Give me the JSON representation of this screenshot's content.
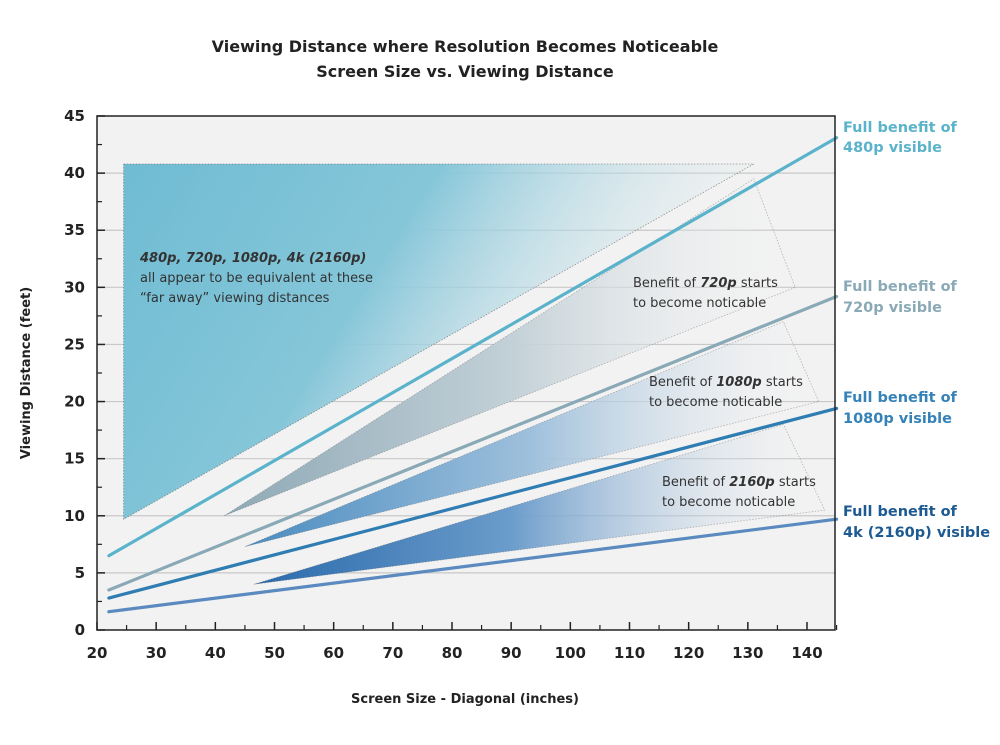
{
  "chart_data": {
    "type": "line",
    "title": "Viewing Distance where Resolution Becomes Noticeable",
    "subtitle": "Screen Size vs. Viewing Distance",
    "xlabel": "Screen Size - Diagonal (inches)",
    "ylabel": "Viewing Distance (feet)",
    "xlim": [
      20,
      145
    ],
    "ylim": [
      0,
      45
    ],
    "xticks": [
      "20",
      "30",
      "40",
      "50",
      "60",
      "70",
      "80",
      "90",
      "100",
      "110",
      "120",
      "130",
      "140"
    ],
    "yticks": [
      "0",
      "5",
      "10",
      "15",
      "20",
      "25",
      "30",
      "35",
      "40",
      "45"
    ],
    "grid": "horizontal",
    "colors": {
      "plot_bg": "#f2f2f2",
      "grid": "#c8c8c8"
    },
    "series": [
      {
        "name": "Full benefit of 480p visible",
        "label_lines": [
          "Full benefit of",
          "480p visible"
        ],
        "color": "#5ab3cb",
        "label_color": "#5ab3cb",
        "x": [
          22,
          145
        ],
        "y": [
          6.5,
          43.1
        ]
      },
      {
        "name": "Full benefit of 720p visible",
        "label_lines": [
          "Full benefit of",
          "720p visible"
        ],
        "color": "#8aa9b6",
        "label_color": "#8aa9b6",
        "x": [
          22,
          145
        ],
        "y": [
          3.5,
          29.2
        ]
      },
      {
        "name": "Full benefit of 1080p visible",
        "label_lines": [
          "Full benefit of",
          "1080p visible"
        ],
        "color": "#2f7db3",
        "label_color": "#3482b8",
        "x": [
          22,
          145
        ],
        "y": [
          2.8,
          19.4
        ]
      },
      {
        "name": "Full benefit of 4k (2160p) visible",
        "label_lines": [
          "Full benefit of",
          "4k (2160p) visible"
        ],
        "color": "#5a8abf",
        "label_color": "#1d5a92",
        "x": [
          22,
          145
        ],
        "y": [
          1.6,
          9.7
        ]
      }
    ],
    "regions": [
      {
        "color": "#6fbcd3",
        "points": [
          [
            24.5,
            40.8
          ],
          [
            24.5,
            9.7
          ],
          [
            131,
            40.8
          ]
        ]
      },
      {
        "color": "#8ea9b6",
        "points": [
          [
            41.5,
            10
          ],
          [
            131,
            39.5
          ],
          [
            138,
            30
          ]
        ]
      },
      {
        "color": "#4a8cc0",
        "points": [
          [
            45,
            7.3
          ],
          [
            136,
            27
          ],
          [
            142,
            20
          ]
        ]
      },
      {
        "color": "#2a6aab",
        "points": [
          [
            46.5,
            4
          ],
          [
            136,
            18
          ],
          [
            143,
            10.5
          ]
        ]
      }
    ],
    "annotations": [
      {
        "italic": "480p, 720p, 1080p, 4k (2160p)",
        "lines": [
          "all appear to be equivalent at these",
          "“far away” viewing distances"
        ]
      },
      {
        "pre": "Benefit of ",
        "italic": "720p",
        "post": " starts",
        "line2": "to become noticable"
      },
      {
        "pre": "Benefit of ",
        "italic": "1080p",
        "post": " starts",
        "line2": "to become noticable"
      },
      {
        "pre": "Benefit of ",
        "italic": "2160p",
        "post": " starts",
        "line2": "to become noticable"
      }
    ]
  }
}
